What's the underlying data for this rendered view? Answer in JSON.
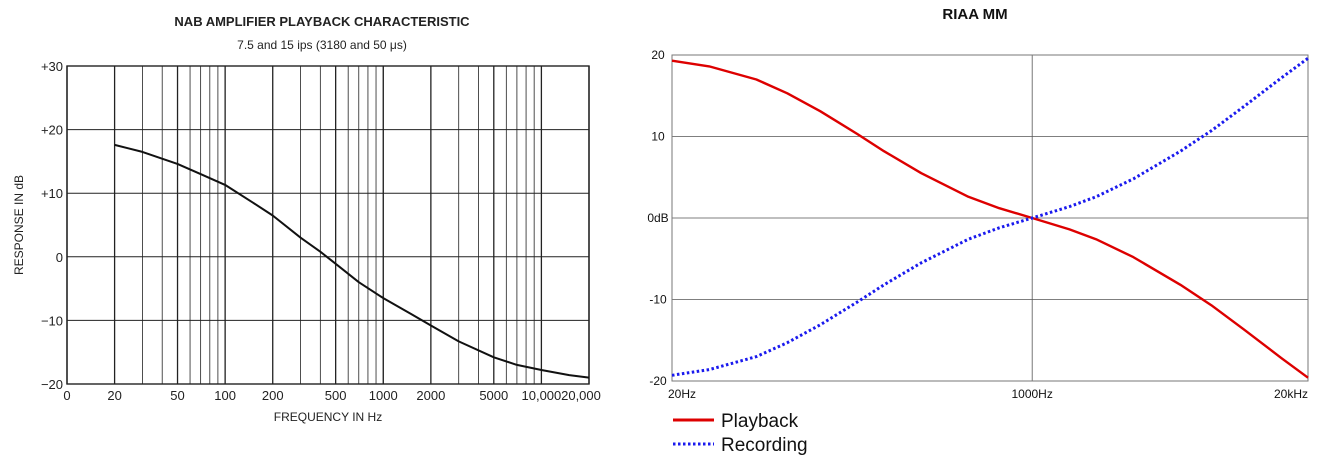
{
  "chart_data": [
    {
      "type": "line",
      "title": "NAB AMPLIFIER PLAYBACK CHARACTERISTIC",
      "subtitle": "7.5 and 15 ips   (3180 and 50 μs)",
      "xlabel": "FREQUENCY IN Hz",
      "ylabel": "RESPONSE IN dB",
      "x_scale": "log",
      "grid": true,
      "x_tick_labels": [
        "0",
        "20",
        "50",
        "100",
        "200",
        "500",
        "1000",
        "2000",
        "5000",
        "10,000",
        "20,000"
      ],
      "y_tick_labels": [
        "+30",
        "+20",
        "+10",
        "0",
        "−10",
        "−20"
      ],
      "y_ticks": [
        30,
        20,
        10,
        0,
        -10,
        -20
      ],
      "ylim": [
        -20,
        30
      ],
      "xlim": [
        10,
        20000
      ],
      "series": [
        {
          "x": [
            20,
            30,
            50,
            70,
            100,
            150,
            200,
            300,
            400,
            500,
            700,
            1000,
            1500,
            2000,
            3000,
            5000,
            7000,
            10000,
            15000,
            20000
          ],
          "y": [
            17.6,
            16.5,
            14.6,
            13.0,
            11.3,
            8.5,
            6.5,
            3.0,
            0.8,
            -1.1,
            -4.0,
            -6.5,
            -9.0,
            -10.8,
            -13.3,
            -15.8,
            -17.0,
            -17.8,
            -18.6,
            -19.0
          ]
        }
      ]
    },
    {
      "type": "line",
      "title": "RIAA MM",
      "x_scale": "log",
      "grid": true,
      "x_tick_labels": [
        "20Hz",
        "1000Hz",
        "20kHz"
      ],
      "x_ticks": [
        20,
        1000,
        20000
      ],
      "y_tick_labels": [
        "20",
        "10",
        "0dB",
        "-10",
        "-20"
      ],
      "y_ticks": [
        20,
        10,
        0,
        -10,
        -20
      ],
      "ylim": [
        -20,
        20
      ],
      "xlim": [
        20,
        20000
      ],
      "legend": "bottom-left",
      "series": [
        {
          "name": "Playback",
          "color": "#dd0000",
          "line_style": "solid",
          "x": [
            20,
            30,
            50,
            70,
            100,
            150,
            200,
            300,
            500,
            700,
            1000,
            1500,
            2000,
            3000,
            5000,
            7000,
            10000,
            15000,
            20000
          ],
          "y": [
            19.3,
            18.6,
            17.0,
            15.3,
            13.1,
            10.3,
            8.2,
            5.5,
            2.6,
            1.2,
            0.0,
            -1.4,
            -2.6,
            -4.8,
            -8.2,
            -10.7,
            -13.7,
            -17.2,
            -19.6
          ]
        },
        {
          "name": "Recording",
          "color": "#1a1aee",
          "line_style": "dotted",
          "x": [
            20,
            30,
            50,
            70,
            100,
            150,
            200,
            300,
            500,
            700,
            1000,
            1500,
            2000,
            3000,
            5000,
            7000,
            10000,
            15000,
            20000
          ],
          "y": [
            -19.3,
            -18.6,
            -17.0,
            -15.3,
            -13.1,
            -10.3,
            -8.2,
            -5.5,
            -2.6,
            -1.2,
            0.0,
            1.4,
            2.6,
            4.8,
            8.2,
            10.7,
            13.7,
            17.2,
            19.6
          ]
        }
      ]
    }
  ]
}
